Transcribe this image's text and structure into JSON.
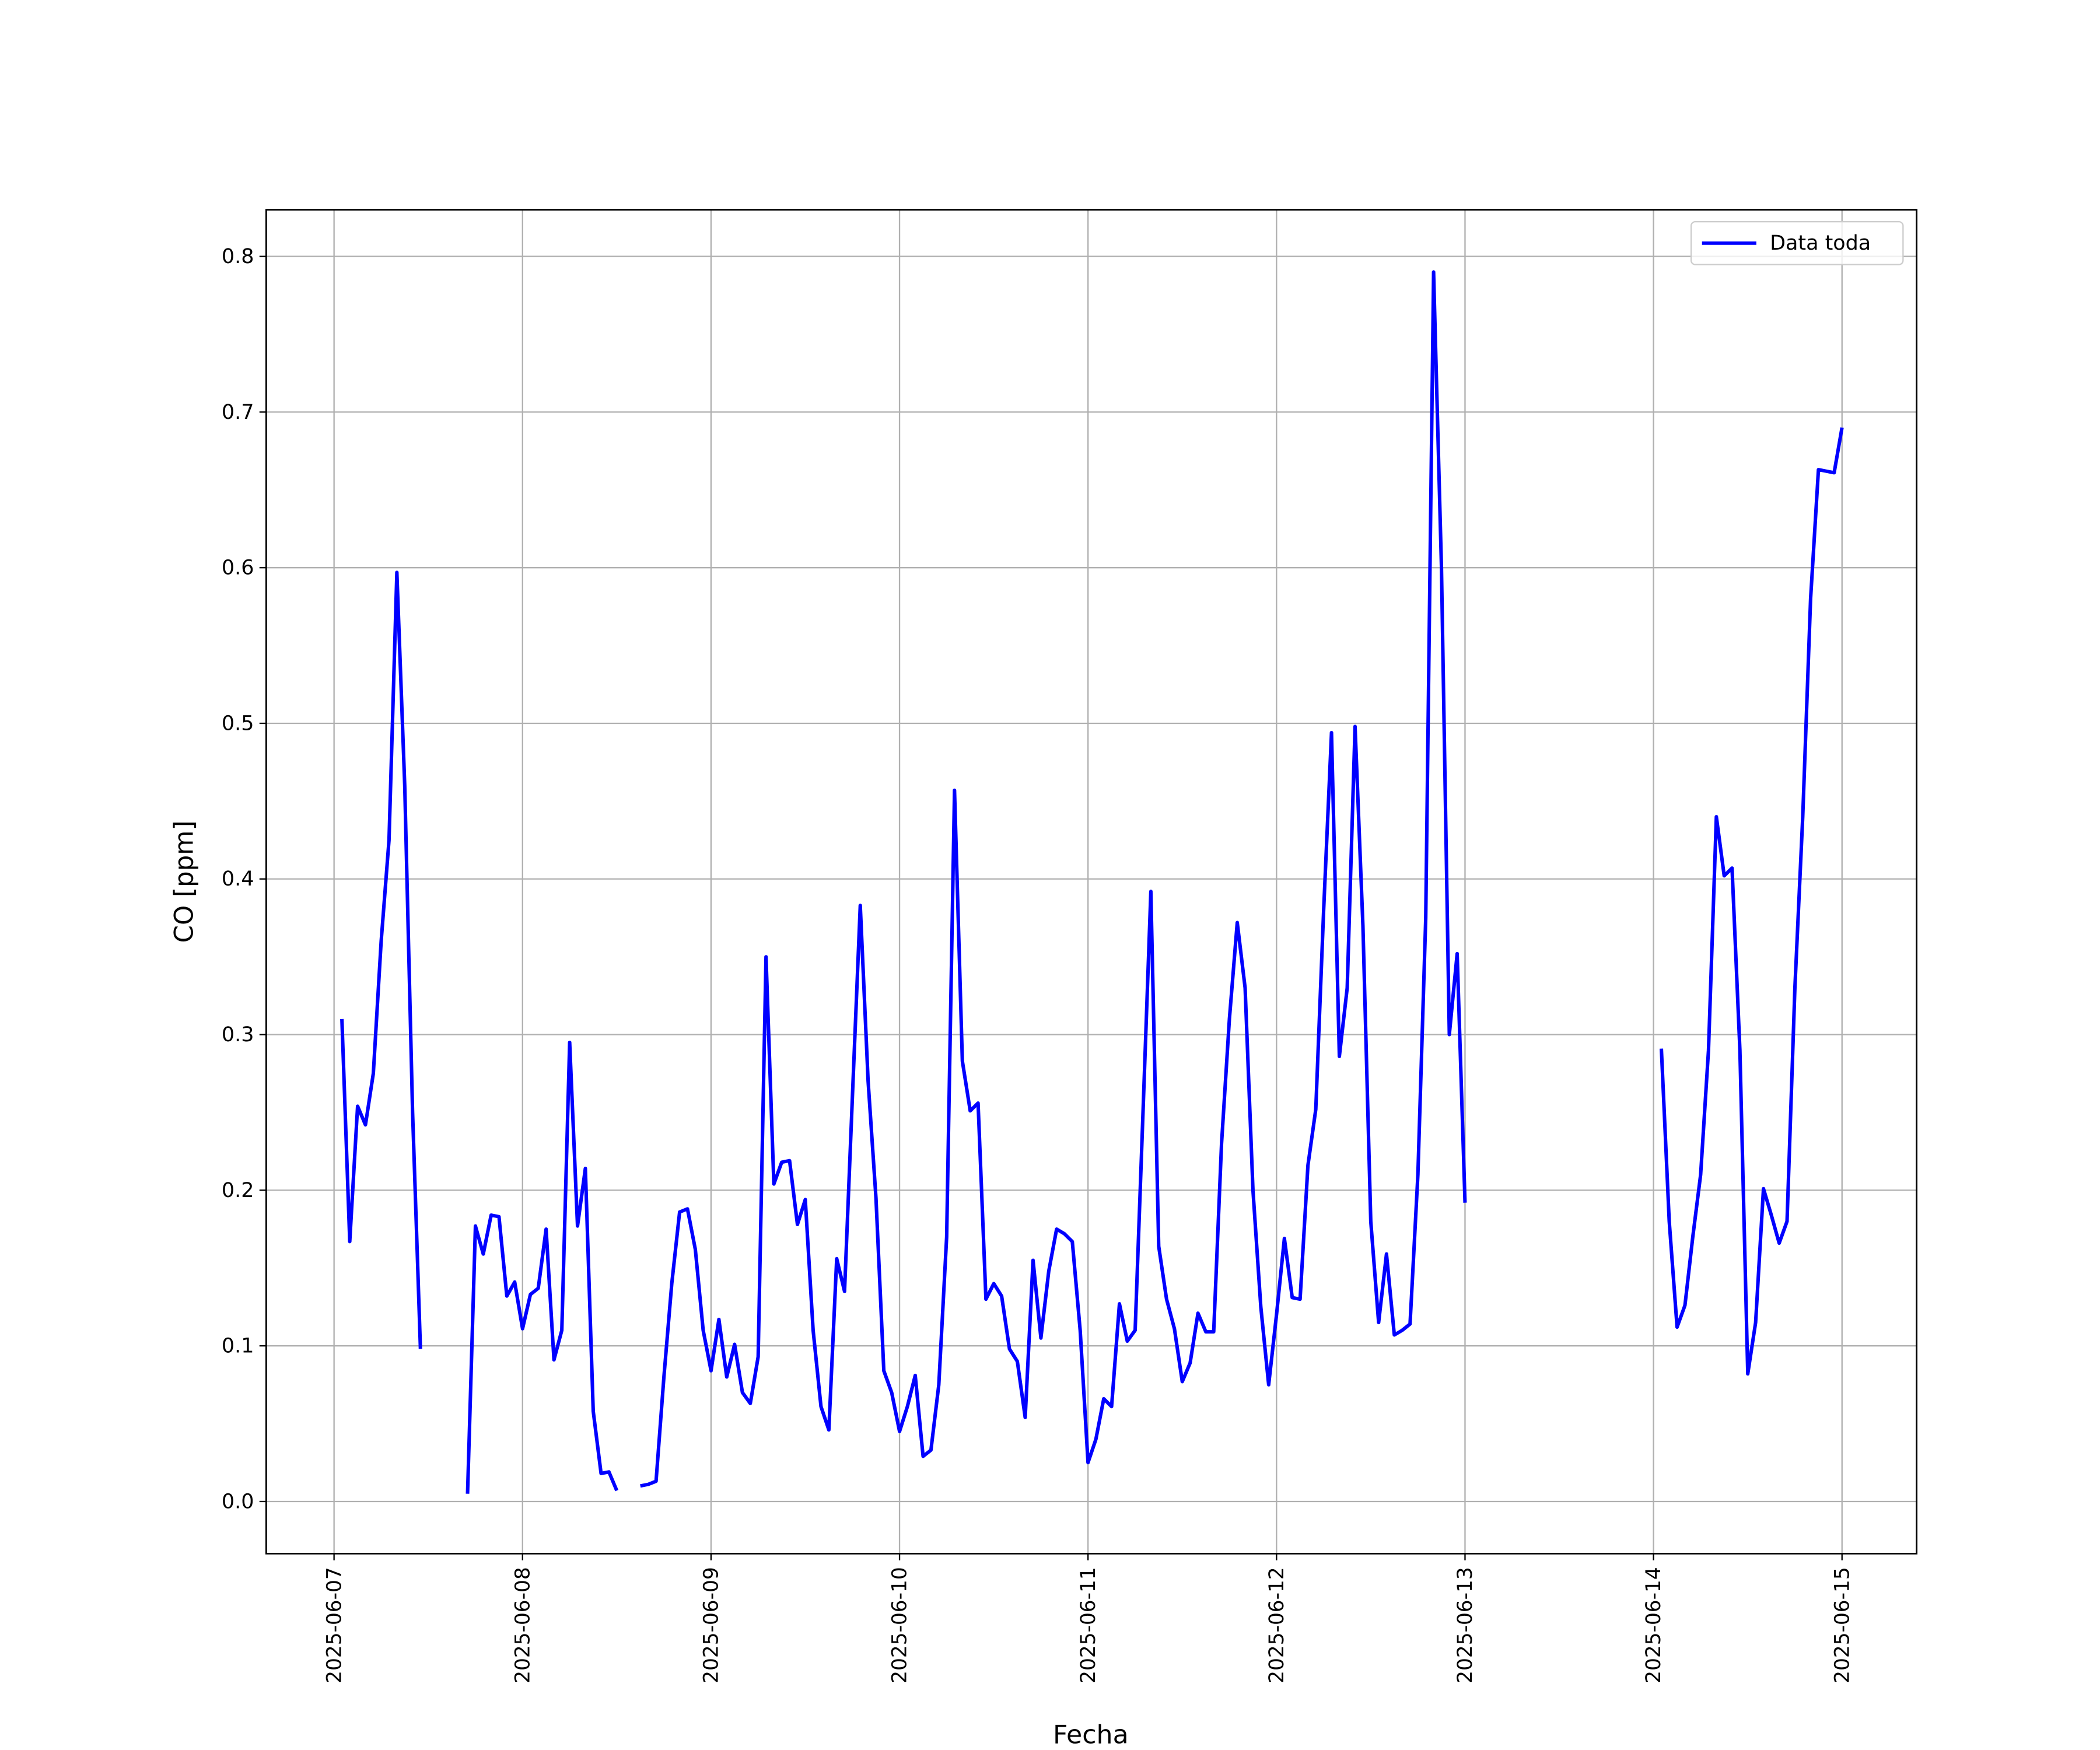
{
  "chart_data": {
    "type": "line",
    "xlabel": "Fecha",
    "ylabel": "CO [ppm]",
    "x": [
      "2025-06-07 01:00",
      "2025-06-07 02:00",
      "2025-06-07 03:00",
      "2025-06-07 04:00",
      "2025-06-07 05:00",
      "2025-06-07 06:00",
      "2025-06-07 07:00",
      "2025-06-07 08:00",
      "2025-06-07 09:00",
      "2025-06-07 10:00",
      "2025-06-07 11:00",
      "2025-06-07 12:00",
      "2025-06-07 17:00",
      "2025-06-07 18:00",
      "2025-06-07 19:00",
      "2025-06-07 20:00",
      "2025-06-07 21:00",
      "2025-06-07 22:00",
      "2025-06-07 23:00",
      "2025-06-08 00:00",
      "2025-06-08 01:00",
      "2025-06-08 02:00",
      "2025-06-08 03:00",
      "2025-06-08 04:00",
      "2025-06-08 05:00",
      "2025-06-08 06:00",
      "2025-06-08 07:00",
      "2025-06-08 08:00",
      "2025-06-08 09:00",
      "2025-06-08 10:00",
      "2025-06-08 11:00",
      "2025-06-08 12:00",
      "2025-06-08 13:00",
      "2025-06-08 15:00",
      "2025-06-08 16:00",
      "2025-06-08 17:00",
      "2025-06-08 18:00",
      "2025-06-08 19:00",
      "2025-06-08 20:00",
      "2025-06-08 21:00",
      "2025-06-08 22:00",
      "2025-06-08 23:00",
      "2025-06-09 00:00",
      "2025-06-09 01:00",
      "2025-06-09 02:00",
      "2025-06-09 03:00",
      "2025-06-09 04:00",
      "2025-06-09 05:00",
      "2025-06-09 06:00",
      "2025-06-09 07:00",
      "2025-06-09 08:00",
      "2025-06-09 09:00",
      "2025-06-09 10:00",
      "2025-06-09 11:00",
      "2025-06-09 12:00",
      "2025-06-09 13:00",
      "2025-06-09 14:00",
      "2025-06-09 15:00",
      "2025-06-09 16:00",
      "2025-06-09 17:00",
      "2025-06-09 18:00",
      "2025-06-09 19:00",
      "2025-06-09 20:00",
      "2025-06-09 21:00",
      "2025-06-09 22:00",
      "2025-06-09 23:00",
      "2025-06-10 00:00",
      "2025-06-10 01:00",
      "2025-06-10 02:00",
      "2025-06-10 03:00",
      "2025-06-10 04:00",
      "2025-06-10 05:00",
      "2025-06-10 06:00",
      "2025-06-10 07:00",
      "2025-06-10 08:00",
      "2025-06-10 09:00",
      "2025-06-10 10:00",
      "2025-06-10 11:00",
      "2025-06-10 12:00",
      "2025-06-10 13:00",
      "2025-06-10 14:00",
      "2025-06-10 15:00",
      "2025-06-10 16:00",
      "2025-06-10 17:00",
      "2025-06-10 18:00",
      "2025-06-10 19:00",
      "2025-06-10 20:00",
      "2025-06-10 21:00",
      "2025-06-10 22:00",
      "2025-06-10 23:00",
      "2025-06-11 00:00",
      "2025-06-11 01:00",
      "2025-06-11 02:00",
      "2025-06-11 03:00",
      "2025-06-11 04:00",
      "2025-06-11 05:00",
      "2025-06-11 06:00",
      "2025-06-11 07:00",
      "2025-06-11 08:00",
      "2025-06-11 09:00",
      "2025-06-11 10:00",
      "2025-06-11 11:00",
      "2025-06-11 12:00",
      "2025-06-11 13:00",
      "2025-06-11 14:00",
      "2025-06-11 15:00",
      "2025-06-11 16:00",
      "2025-06-11 17:00",
      "2025-06-11 18:00",
      "2025-06-11 19:00",
      "2025-06-11 20:00",
      "2025-06-11 21:00",
      "2025-06-11 22:00",
      "2025-06-11 23:00",
      "2025-06-12 00:00",
      "2025-06-12 01:00",
      "2025-06-12 02:00",
      "2025-06-12 03:00",
      "2025-06-12 04:00",
      "2025-06-12 05:00",
      "2025-06-12 06:00",
      "2025-06-12 07:00",
      "2025-06-12 08:00",
      "2025-06-12 09:00",
      "2025-06-12 10:00",
      "2025-06-12 11:00",
      "2025-06-12 12:00",
      "2025-06-12 13:00",
      "2025-06-12 14:00",
      "2025-06-12 15:00",
      "2025-06-12 16:00",
      "2025-06-12 17:00",
      "2025-06-12 18:00",
      "2025-06-12 19:00",
      "2025-06-12 20:00",
      "2025-06-12 21:00",
      "2025-06-12 22:00",
      "2025-06-12 23:00",
      "2025-06-13 00:00",
      "2025-06-13 01:00",
      "2025-06-14 01:00",
      "2025-06-14 02:00",
      "2025-06-14 03:00",
      "2025-06-14 04:00",
      "2025-06-14 05:00",
      "2025-06-14 06:00",
      "2025-06-14 07:00",
      "2025-06-14 08:00",
      "2025-06-14 09:00",
      "2025-06-14 10:00",
      "2025-06-14 11:00",
      "2025-06-14 12:00",
      "2025-06-14 13:00",
      "2025-06-14 14:00",
      "2025-06-14 15:00",
      "2025-06-14 16:00",
      "2025-06-14 17:00",
      "2025-06-14 18:00",
      "2025-06-14 19:00",
      "2025-06-14 20:00",
      "2025-06-14 21:00",
      "2025-06-14 22:00",
      "2025-06-14 23:00",
      "2025-06-15 00:00"
    ],
    "series": [
      {
        "name": "Data toda",
        "color": "#0000ff",
        "values": [
          0.31,
          0.167,
          0.254,
          0.242,
          0.275,
          0.36,
          0.425,
          0.597,
          0.46,
          0.25,
          0.098,
          null,
          0.005,
          0.177,
          0.159,
          0.184,
          0.183,
          0.132,
          0.141,
          0.111,
          0.133,
          0.137,
          0.175,
          0.091,
          0.11,
          0.295,
          0.177,
          0.214,
          0.058,
          0.018,
          0.019,
          0.007,
          null,
          0.01,
          0.011,
          0.013,
          0.08,
          0.14,
          0.186,
          0.188,
          0.162,
          0.11,
          0.084,
          0.117,
          0.08,
          0.101,
          0.07,
          0.063,
          0.093,
          0.35,
          0.204,
          0.218,
          0.219,
          0.178,
          0.194,
          0.11,
          0.061,
          0.046,
          0.156,
          0.135,
          0.26,
          0.383,
          0.27,
          0.195,
          0.084,
          0.07,
          0.045,
          0.061,
          0.081,
          0.029,
          0.033,
          0.075,
          0.17,
          0.457,
          0.283,
          0.251,
          0.256,
          0.13,
          0.14,
          0.132,
          0.098,
          0.09,
          0.054,
          0.155,
          0.105,
          0.148,
          0.175,
          0.172,
          0.167,
          0.11,
          0.025,
          0.04,
          0.066,
          0.061,
          0.127,
          0.103,
          0.11,
          0.25,
          0.392,
          0.164,
          0.13,
          0.111,
          0.077,
          0.089,
          0.121,
          0.109,
          0.109,
          0.23,
          0.31,
          0.372,
          0.33,
          0.2,
          0.125,
          0.075,
          0.12,
          0.169,
          0.131,
          0.13,
          0.216,
          0.252,
          0.38,
          0.494,
          0.286,
          0.33,
          0.498,
          0.37,
          0.18,
          0.115,
          0.159,
          0.107,
          0.11,
          0.114,
          0.21,
          0.375,
          0.79,
          0.6,
          0.3,
          0.352,
          0.192,
          null,
          0.291,
          0.18,
          0.112,
          0.126,
          0.17,
          0.21,
          0.29,
          0.44,
          0.402,
          0.407,
          0.29,
          0.082,
          0.115,
          0.201,
          0.184,
          0.166,
          0.18,
          0.33,
          0.44,
          0.58,
          0.663,
          0.662,
          0.661,
          0.69
        ]
      }
    ],
    "xlim": [
      "2025-06-06 15:22",
      "2025-06-15 09:30"
    ],
    "xticks": [
      "2025-06-07",
      "2025-06-08",
      "2025-06-09",
      "2025-06-10",
      "2025-06-11",
      "2025-06-12",
      "2025-06-13",
      "2025-06-14",
      "2025-06-15"
    ],
    "ylim": [
      -0.0335,
      0.83
    ],
    "yticks": [
      {
        "value": 0,
        "label": "0.0"
      },
      0.1,
      0.2,
      0.3,
      0.4,
      0.5,
      0.6,
      0.7,
      0.8
    ],
    "grid": true,
    "legend": "upper right"
  }
}
